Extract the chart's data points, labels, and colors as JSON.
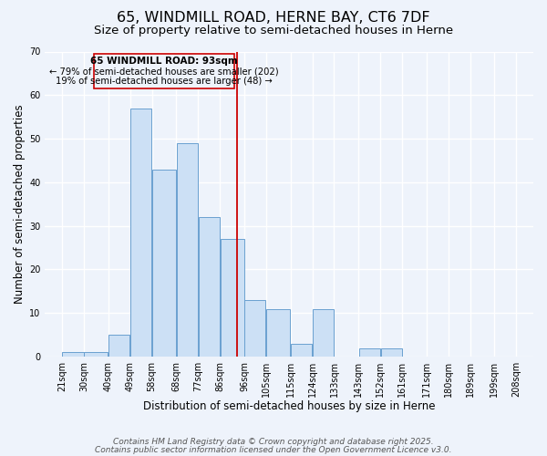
{
  "title": "65, WINDMILL ROAD, HERNE BAY, CT6 7DF",
  "subtitle": "Size of property relative to semi-detached houses in Herne",
  "xlabel": "Distribution of semi-detached houses by size in Herne",
  "ylabel": "Number of semi-detached properties",
  "bar_left_edges": [
    21,
    30,
    40,
    49,
    58,
    68,
    77,
    86,
    96,
    105,
    115,
    124,
    133,
    143,
    152,
    161,
    171,
    180,
    189,
    199
  ],
  "bar_widths": [
    9,
    10,
    9,
    9,
    10,
    9,
    9,
    10,
    9,
    10,
    9,
    9,
    10,
    9,
    9,
    10,
    9,
    9,
    10,
    9
  ],
  "bar_heights": [
    1,
    1,
    5,
    57,
    43,
    49,
    32,
    27,
    13,
    11,
    3,
    11,
    0,
    2,
    2,
    0,
    0,
    0,
    0,
    0
  ],
  "bar_color": "#cce0f5",
  "bar_edge_color": "#6aa0d0",
  "ylim": [
    0,
    70
  ],
  "yticks": [
    0,
    10,
    20,
    30,
    40,
    50,
    60,
    70
  ],
  "xtick_labels": [
    "21sqm",
    "30sqm",
    "40sqm",
    "49sqm",
    "58sqm",
    "68sqm",
    "77sqm",
    "86sqm",
    "96sqm",
    "105sqm",
    "115sqm",
    "124sqm",
    "133sqm",
    "143sqm",
    "152sqm",
    "161sqm",
    "171sqm",
    "180sqm",
    "189sqm",
    "199sqm",
    "208sqm"
  ],
  "xtick_positions": [
    21,
    30,
    40,
    49,
    58,
    68,
    77,
    86,
    96,
    105,
    115,
    124,
    133,
    143,
    152,
    161,
    171,
    180,
    189,
    199,
    208
  ],
  "vline_x": 93,
  "vline_color": "#cc0000",
  "annotation_title": "65 WINDMILL ROAD: 93sqm",
  "annotation_line1": "← 79% of semi-detached houses are smaller (202)",
  "annotation_line2": "19% of semi-detached houses are larger (48) →",
  "footer1": "Contains HM Land Registry data © Crown copyright and database right 2025.",
  "footer2": "Contains public sector information licensed under the Open Government Licence v3.0.",
  "bg_color": "#eef3fb",
  "grid_color": "#ffffff",
  "title_fontsize": 11.5,
  "subtitle_fontsize": 9.5,
  "axis_label_fontsize": 8.5,
  "tick_fontsize": 7,
  "annotation_fontsize": 7.5,
  "footer_fontsize": 6.5
}
